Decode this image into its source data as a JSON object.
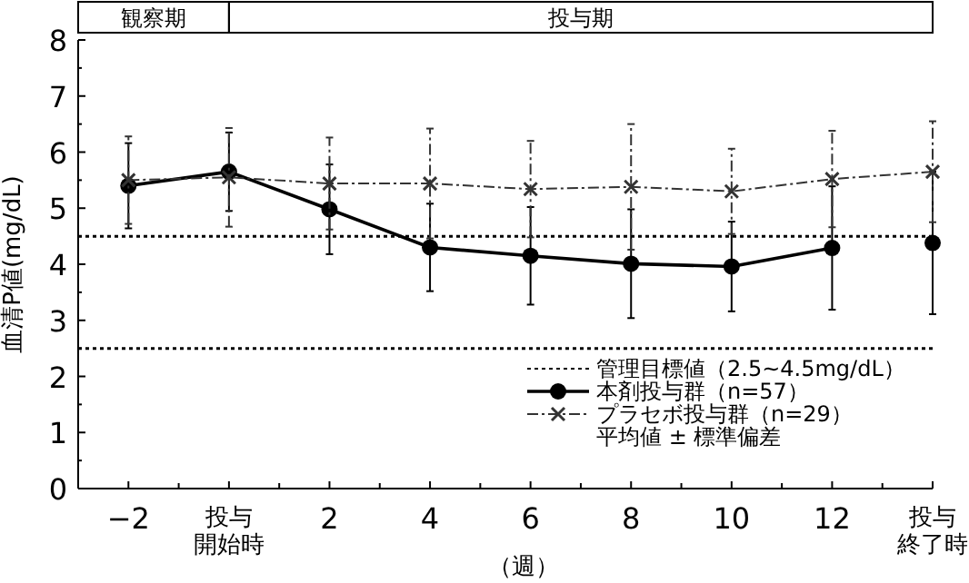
{
  "chart_data": {
    "type": "line",
    "ylabel": "血清P値(mg/dL)",
    "xlabel": "（週）",
    "categories": [
      "−2",
      "投与開始時",
      "2",
      "4",
      "6",
      "8",
      "10",
      "12",
      "投与終了時"
    ],
    "ylim": [
      0,
      8
    ],
    "yticks": [
      0,
      1,
      2,
      3,
      4,
      5,
      6,
      7,
      8
    ],
    "series": [
      {
        "name": "本剤投与群（n=57）",
        "color": "#000000",
        "marker": "circle",
        "line_style": "solid",
        "values": [
          5.4,
          5.65,
          4.98,
          4.3,
          4.15,
          4.01,
          3.96,
          4.29,
          null
        ],
        "errors": [
          0.76,
          0.7,
          0.8,
          0.78,
          0.87,
          0.97,
          0.8,
          1.1,
          null
        ]
      },
      {
        "color": "#000000",
        "marker": "circle",
        "line_style": "solid",
        "values": [
          null,
          null,
          null,
          null,
          null,
          null,
          null,
          null,
          4.38
        ],
        "errors": [
          null,
          null,
          null,
          null,
          null,
          null,
          null,
          null,
          1.27
        ]
      },
      {
        "name": "プラセボ投与群（n=29）",
        "color": "#333333",
        "marker": "cross",
        "line_style": "dashdot",
        "values": [
          5.5,
          5.55,
          5.44,
          5.44,
          5.34,
          5.38,
          5.3,
          5.52,
          5.65
        ],
        "errors": [
          0.78,
          0.88,
          0.82,
          0.98,
          0.86,
          1.12,
          0.76,
          0.86,
          0.9
        ]
      }
    ],
    "ref_lines": [
      {
        "axis": "y",
        "value": 4.5,
        "label": "管理目標値（2.5~4.5mg/dL）",
        "line_style": "dotted",
        "color": "#000000"
      },
      {
        "axis": "y",
        "value": 2.5,
        "line_style": "dotted",
        "color": "#000000"
      }
    ],
    "annotations": [
      "観察期",
      "投与期",
      "平均値 ± 標準偏差"
    ],
    "legend": "bottom right",
    "grid": false
  }
}
